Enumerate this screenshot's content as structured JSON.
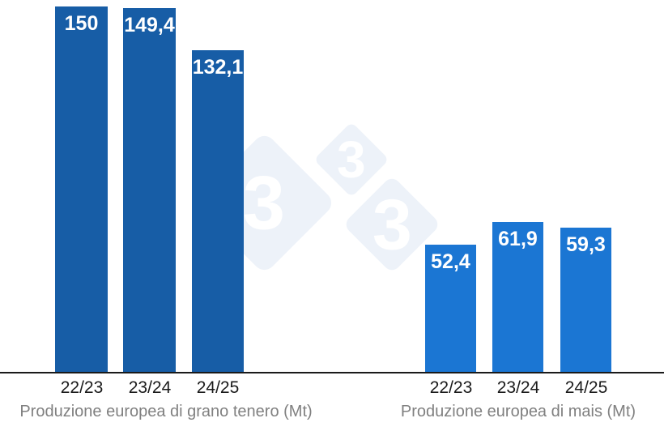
{
  "watermark": {
    "digit": "3",
    "brand": "333",
    "diamond_color": "#edf2f9",
    "digit_color": "#ffffff"
  },
  "axis": {
    "line_color": "#1a1a1a",
    "tick_color": "#1a1a1a",
    "title_color": "#808080"
  },
  "chart_data": [
    {
      "type": "bar",
      "title": "Produzione europea di grano tenero (Mt)",
      "categories": [
        "22/23",
        "23/24",
        "24/25"
      ],
      "values": [
        150,
        149.4,
        132.1
      ],
      "value_labels": [
        "150",
        "149,4",
        "132,1"
      ],
      "bar_color": "#175da6",
      "value_label_color": "#ffffff",
      "ylim": [
        0,
        152.6
      ],
      "grid": false,
      "legend": false
    },
    {
      "type": "bar",
      "title": "Produzione europea di mais (Mt)",
      "categories": [
        "22/23",
        "23/24",
        "24/25"
      ],
      "values": [
        52.4,
        61.9,
        59.3
      ],
      "value_labels": [
        "52,4",
        "61,9",
        "59,3"
      ],
      "bar_color": "#1b76d3",
      "value_label_color": "#ffffff",
      "ylim": [
        0,
        152.6
      ],
      "grid": false,
      "legend": false
    }
  ]
}
